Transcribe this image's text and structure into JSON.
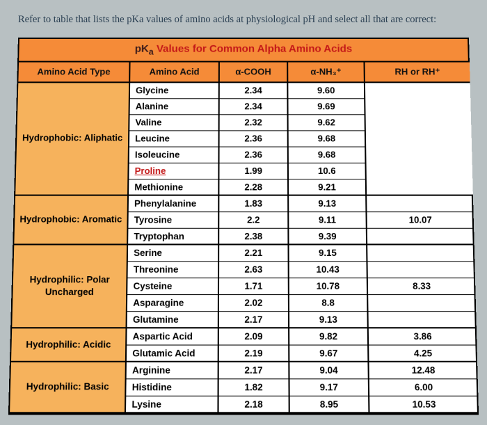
{
  "prompt": "Refer to table that lists the pKa values of amino acids at physiological pH and select all that are correct:",
  "table_title_dark": "pK",
  "table_title_sub": "a",
  "table_title_red": " Values for Common Alpha Amino Acids",
  "headers": {
    "type": "Amino Acid Type",
    "acid": "Amino Acid",
    "cooh": "α-COOH",
    "nh3": "α-NH₃⁺",
    "rh": "RH or RH⁺"
  },
  "groups": [
    {
      "label": "Hydrophobic: Aliphatic",
      "rows": [
        {
          "aa": "Glycine",
          "cooh": "2.34",
          "nh3": "9.60",
          "rh": "",
          "red": false
        },
        {
          "aa": "Alanine",
          "cooh": "2.34",
          "nh3": "9.69",
          "rh": "",
          "red": false
        },
        {
          "aa": "Valine",
          "cooh": "2.32",
          "nh3": "9.62",
          "rh": "",
          "red": false
        },
        {
          "aa": "Leucine",
          "cooh": "2.36",
          "nh3": "9.68",
          "rh": "",
          "red": false
        },
        {
          "aa": "Isoleucine",
          "cooh": "2.36",
          "nh3": "9.68",
          "rh": "",
          "red": false
        },
        {
          "aa": "Proline",
          "cooh": "1.99",
          "nh3": "10.6",
          "rh": "",
          "red": true
        },
        {
          "aa": "Methionine",
          "cooh": "2.28",
          "nh3": "9.21",
          "rh": "",
          "red": false
        }
      ],
      "rh_merged": ""
    },
    {
      "label": "Hydrophobic: Aromatic",
      "rows": [
        {
          "aa": "Phenylalanine",
          "cooh": "1.83",
          "nh3": "9.13",
          "rh": ""
        },
        {
          "aa": "Tyrosine",
          "cooh": "2.2",
          "nh3": "9.11",
          "rh": "10.07"
        },
        {
          "aa": "Tryptophan",
          "cooh": "2.38",
          "nh3": "9.39",
          "rh": ""
        }
      ]
    },
    {
      "label": "Hydrophilic: Polar Uncharged",
      "rows": [
        {
          "aa": "Serine",
          "cooh": "2.21",
          "nh3": "9.15",
          "rh": ""
        },
        {
          "aa": "Threonine",
          "cooh": "2.63",
          "nh3": "10.43",
          "rh": ""
        },
        {
          "aa": "Cysteine",
          "cooh": "1.71",
          "nh3": "10.78",
          "rh": "8.33"
        },
        {
          "aa": "Asparagine",
          "cooh": "2.02",
          "nh3": "8.8",
          "rh": ""
        },
        {
          "aa": "Glutamine",
          "cooh": "2.17",
          "nh3": "9.13",
          "rh": ""
        }
      ]
    },
    {
      "label": "Hydrophilic: Acidic",
      "rows": [
        {
          "aa": "Aspartic Acid",
          "cooh": "2.09",
          "nh3": "9.82",
          "rh": "3.86"
        },
        {
          "aa": "Glutamic Acid",
          "cooh": "2.19",
          "nh3": "9.67",
          "rh": "4.25"
        }
      ]
    },
    {
      "label": "Hydrophilic: Basic",
      "rows": [
        {
          "aa": "Arginine",
          "cooh": "2.17",
          "nh3": "9.04",
          "rh": "12.48"
        },
        {
          "aa": "Histidine",
          "cooh": "1.82",
          "nh3": "9.17",
          "rh": "6.00"
        },
        {
          "aa": "Lysine",
          "cooh": "2.18",
          "nh3": "8.95",
          "rh": "10.53"
        }
      ]
    }
  ],
  "colors": {
    "page_bg": "#b8c0c2",
    "header_bg": "#f58b38",
    "tab_bg": "#f6b25c",
    "border": "#000000",
    "text": "#111111",
    "red": "#c41818",
    "prompt": "#2a3f52"
  }
}
